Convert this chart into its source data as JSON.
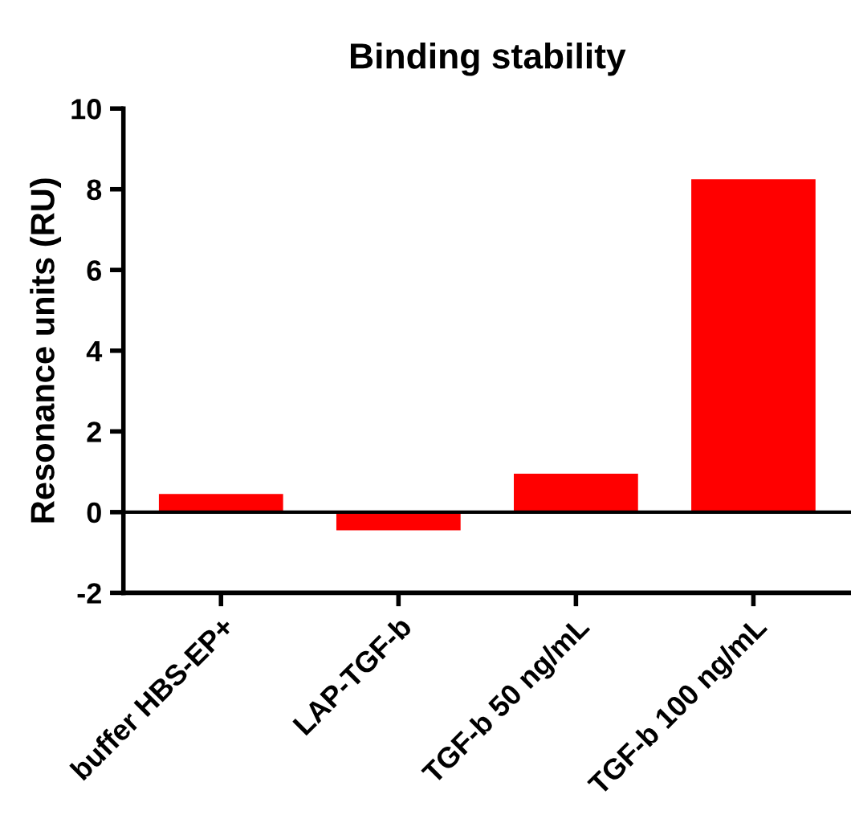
{
  "chart_data": {
    "type": "bar",
    "title": "Binding stability",
    "ylabel": "Resonance units (RU)",
    "categories": [
      "buffer HBS-EP+",
      "LAP-TGF-b",
      "TGF-b 50 ng/mL",
      "TGF-b 100 ng/mL"
    ],
    "values": [
      0.45,
      -0.45,
      0.95,
      8.25
    ],
    "color": "#ff0000",
    "ylim": [
      -2,
      10
    ],
    "yticks": [
      -2,
      0,
      2,
      4,
      6,
      8,
      10
    ],
    "ref_lines": [
      {
        "axis": "y",
        "value": 0,
        "color": "#000000"
      }
    ],
    "grid": false,
    "legend": false
  }
}
